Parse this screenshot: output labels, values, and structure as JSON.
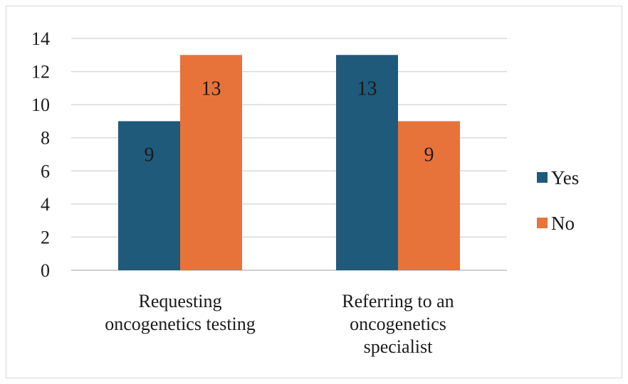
{
  "chart_data": {
    "type": "bar",
    "categories": [
      [
        "Requesting",
        "oncogenetics testing"
      ],
      [
        "Referring to an",
        "oncogenetics",
        "specialist"
      ]
    ],
    "series": [
      {
        "name": "Yes",
        "values": [
          9,
          13
        ],
        "color": "#1f5a7a"
      },
      {
        "name": "No",
        "values": [
          13,
          9
        ],
        "color": "#e8733a"
      }
    ],
    "ylim": [
      0,
      14
    ],
    "yticks": [
      0,
      2,
      4,
      6,
      8,
      10,
      12,
      14
    ],
    "grid": true,
    "legend_position": "right",
    "data_labels": true
  }
}
